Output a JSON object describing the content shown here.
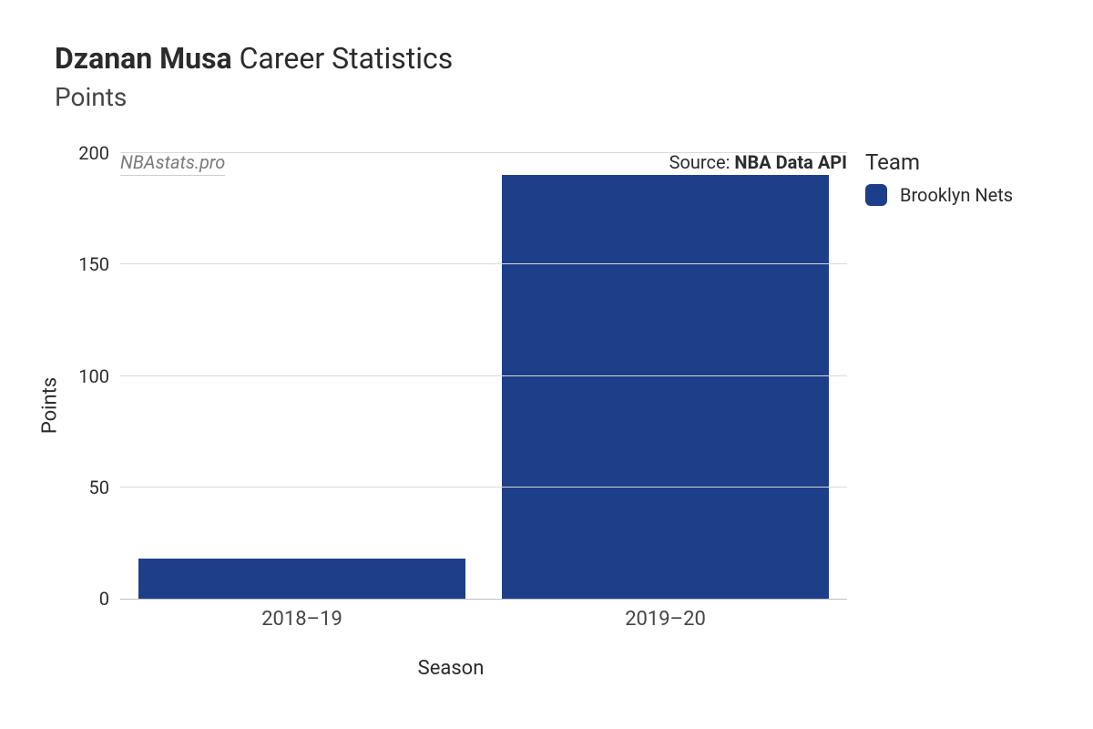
{
  "title": {
    "name": "Dzanan Musa",
    "rest": " Career Statistics"
  },
  "subtitle": "Points",
  "watermark": "NBAstats.pro",
  "source": {
    "label": "Source: ",
    "value": "NBA Data API"
  },
  "legend": {
    "title": "Team",
    "items": [
      {
        "label": "Brooklyn Nets",
        "color": "#1d3e89"
      }
    ]
  },
  "chart": {
    "type": "bar",
    "xlabel": "Season",
    "ylabel": "Points",
    "ylim": [
      0,
      200
    ],
    "ytick_step": 50,
    "yticks": [
      0,
      50,
      100,
      150,
      200
    ],
    "categories": [
      "2018–19",
      "2019–20"
    ],
    "values": [
      18,
      190
    ],
    "bar_color": "#1d3e89",
    "bar_width_pct": 45,
    "background_color": "#ffffff",
    "grid_color": "#d9d9d9",
    "axis_color": "#bdbdbd",
    "tick_fontsize": 20,
    "label_fontsize": 22,
    "title_fontsize": 32
  }
}
